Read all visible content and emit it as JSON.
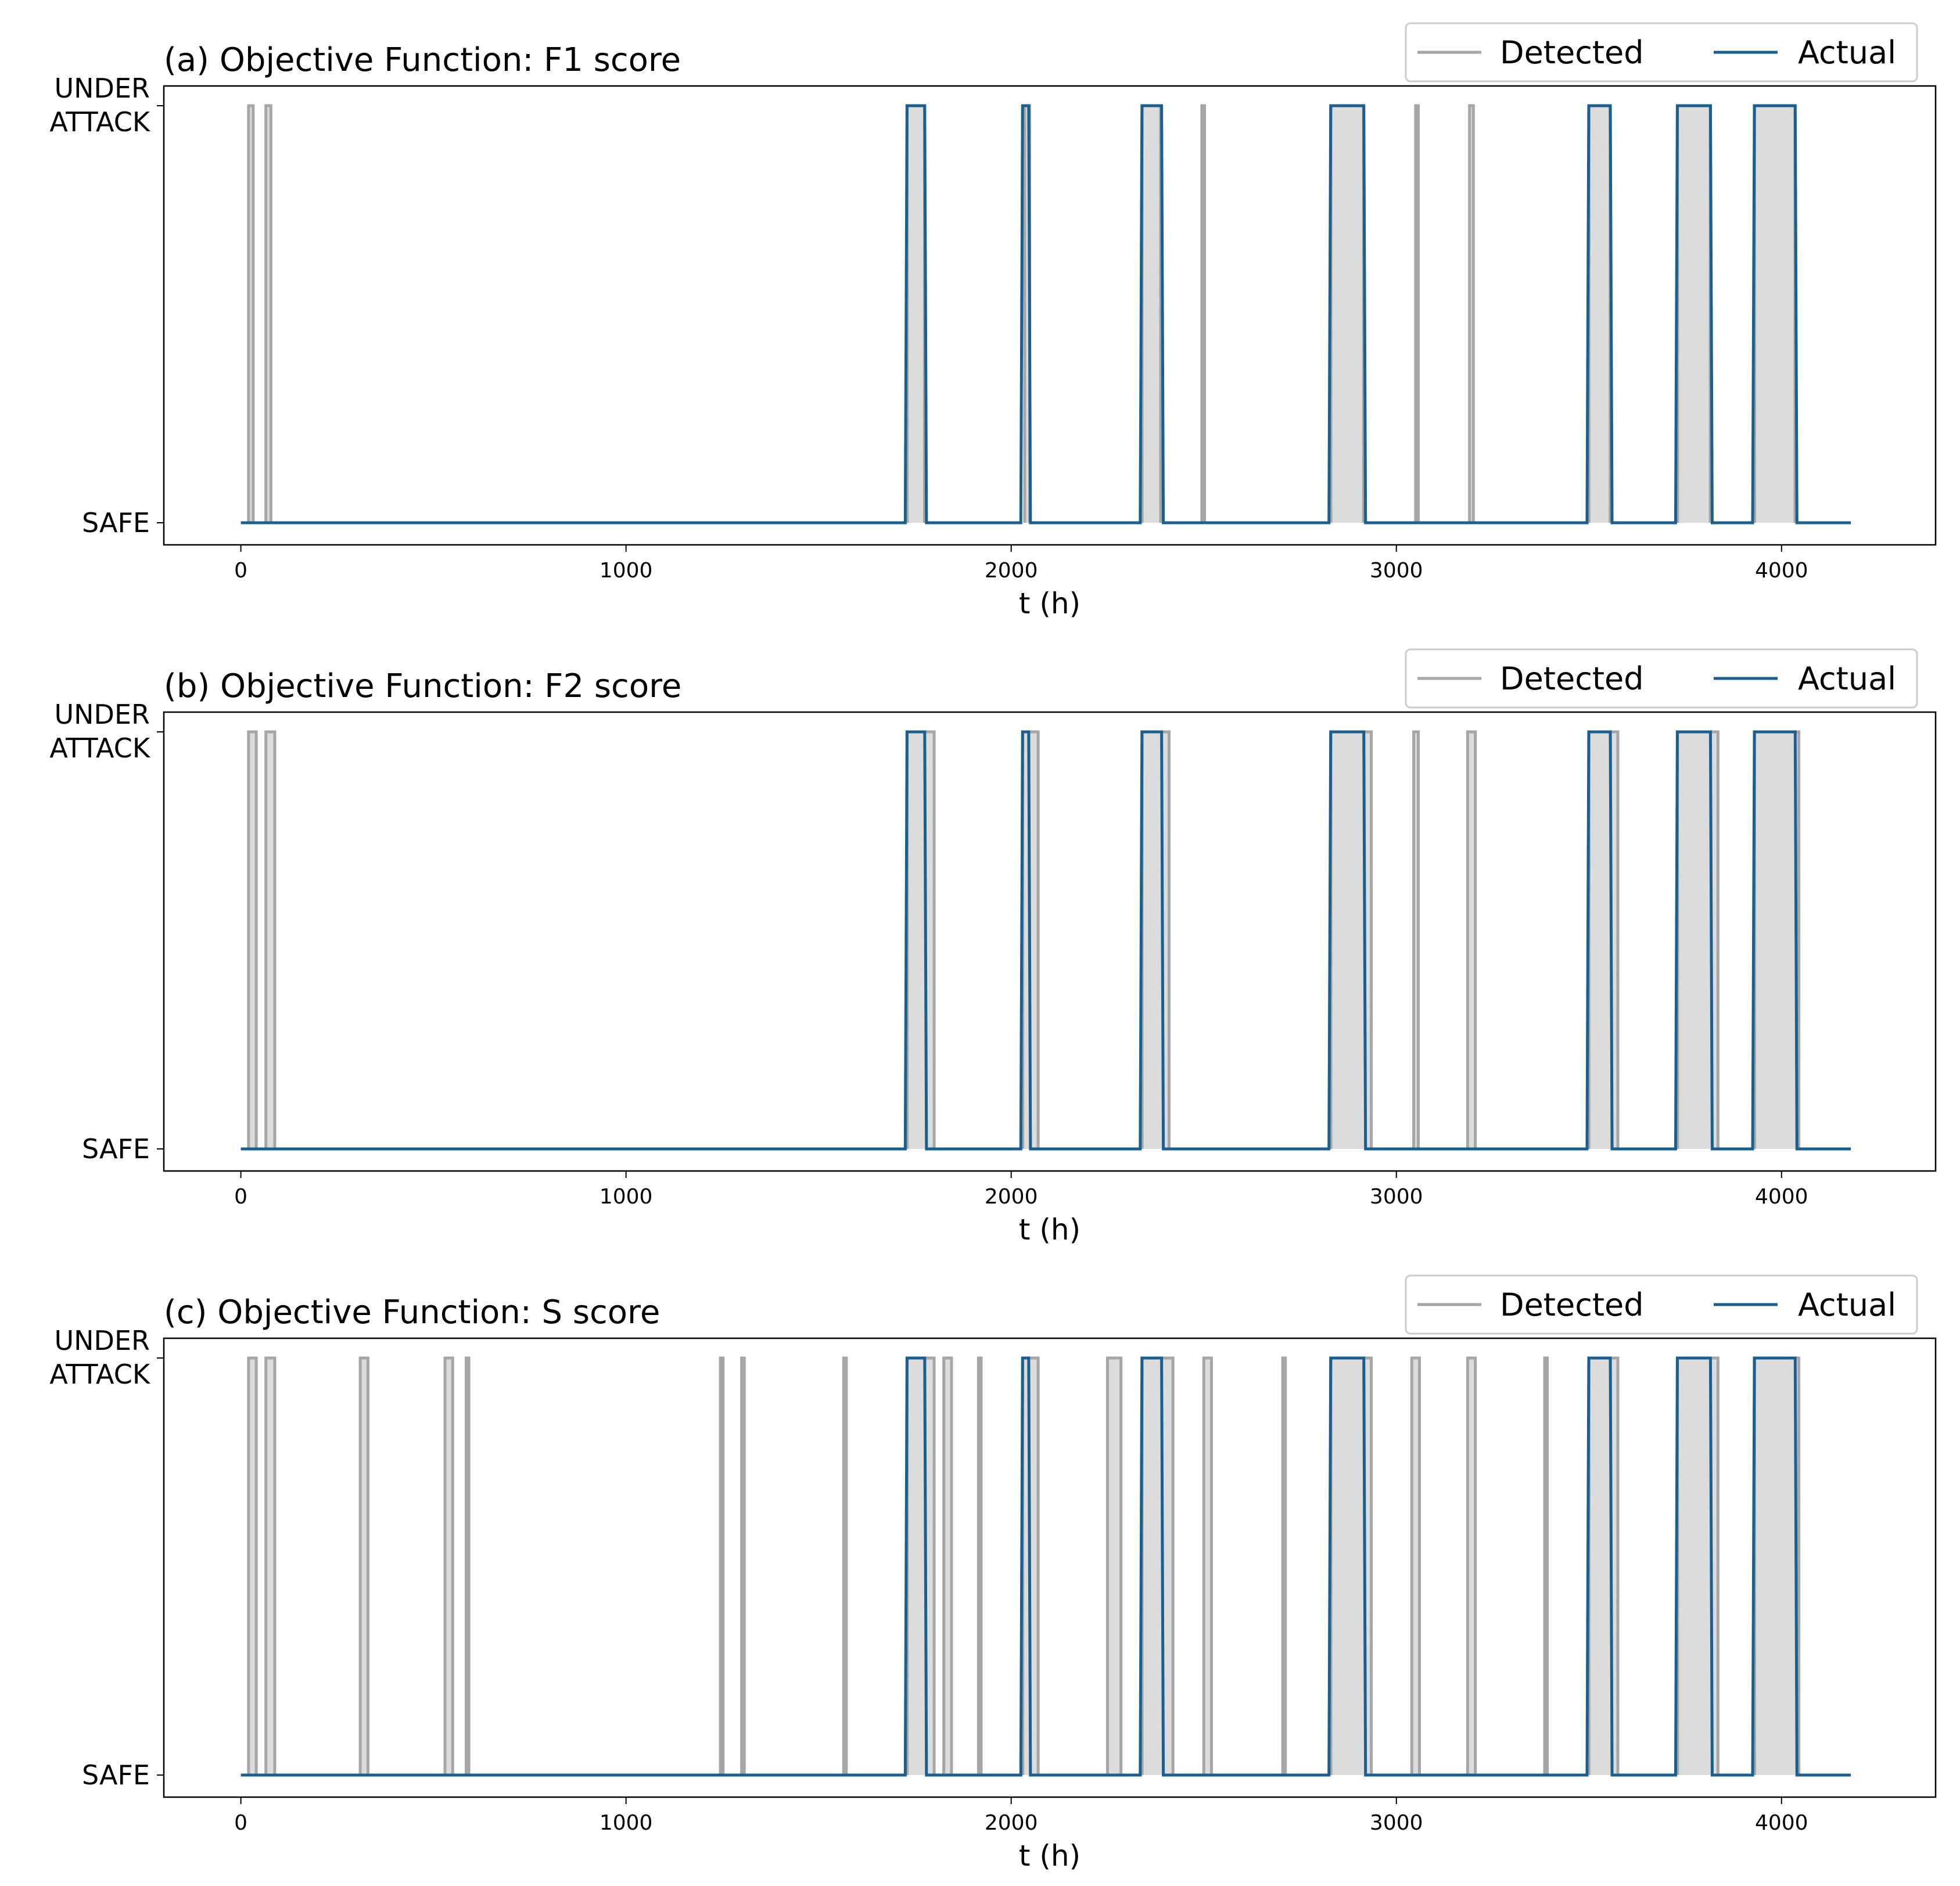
{
  "colors": {
    "detected_line": "#a6a6a6",
    "detected_fill": "#dcdcdc",
    "actual_line": "#1a5f8f",
    "frame": "#000000",
    "legend_border": "#cccccc"
  },
  "legend": {
    "detected": "Detected",
    "actual": "Actual"
  },
  "chart_data": [
    {
      "type": "line",
      "title": "(a) Objective Function: F1 score",
      "xlabel": "t (h)",
      "ylabel": "",
      "xlim": [
        -200,
        4400
      ],
      "xticks": [
        0,
        1000,
        2000,
        3000,
        4000
      ],
      "yticks": [
        "SAFE",
        "UNDER ATTACK"
      ],
      "ylim": [
        0,
        1
      ],
      "legend_position": "top-right",
      "x_end": 4180,
      "series": [
        {
          "name": "Actual",
          "intervals": [
            [
              1725,
              1780
            ],
            [
              2025,
              2050
            ],
            [
              2335,
              2395
            ],
            [
              2825,
              2920
            ],
            [
              3495,
              3560
            ],
            [
              3725,
              3820
            ],
            [
              3925,
              4040
            ]
          ]
        },
        {
          "name": "Detected",
          "intervals": [
            [
              20,
              32
            ],
            [
              65,
              78
            ],
            [
              1730,
              1775
            ],
            [
              2035,
              2048
            ],
            [
              2340,
              2388
            ],
            [
              2495,
              2502
            ],
            [
              2830,
              2915
            ],
            [
              3050,
              3057
            ],
            [
              3190,
              3200
            ],
            [
              3500,
              3555
            ],
            [
              3730,
              3815
            ],
            [
              3930,
              4035
            ]
          ]
        }
      ]
    },
    {
      "type": "line",
      "title": "(b) Objective Function: F2 score",
      "xlabel": "t (h)",
      "ylabel": "",
      "xlim": [
        -200,
        4400
      ],
      "xticks": [
        0,
        1000,
        2000,
        3000,
        4000
      ],
      "yticks": [
        "SAFE",
        "UNDER ATTACK"
      ],
      "ylim": [
        0,
        1
      ],
      "legend_position": "top-right",
      "x_end": 4180,
      "series": [
        {
          "name": "Actual",
          "intervals": [
            [
              1725,
              1780
            ],
            [
              2025,
              2050
            ],
            [
              2335,
              2395
            ],
            [
              2825,
              2920
            ],
            [
              3495,
              3560
            ],
            [
              3725,
              3820
            ],
            [
              3925,
              4040
            ]
          ]
        },
        {
          "name": "Detected",
          "intervals": [
            [
              20,
              40
            ],
            [
              65,
              88
            ],
            [
              1730,
              1800
            ],
            [
              2030,
              2070
            ],
            [
              2340,
              2410
            ],
            [
              2830,
              2935
            ],
            [
              3045,
              3057
            ],
            [
              3185,
              3205
            ],
            [
              3500,
              3575
            ],
            [
              3730,
              3835
            ],
            [
              3930,
              4045
            ]
          ]
        }
      ]
    },
    {
      "type": "line",
      "title": "(c) Objective Function: S score",
      "xlabel": "t (h)",
      "ylabel": "",
      "xlim": [
        -200,
        4400
      ],
      "xticks": [
        0,
        1000,
        2000,
        3000,
        4000
      ],
      "yticks": [
        "SAFE",
        "UNDER ATTACK"
      ],
      "ylim": [
        0,
        1
      ],
      "legend_position": "top-right",
      "x_end": 4180,
      "series": [
        {
          "name": "Actual",
          "intervals": [
            [
              1725,
              1780
            ],
            [
              2025,
              2050
            ],
            [
              2335,
              2395
            ],
            [
              2825,
              2920
            ],
            [
              3495,
              3560
            ],
            [
              3725,
              3820
            ],
            [
              3925,
              4040
            ]
          ]
        },
        {
          "name": "Detected",
          "intervals": [
            [
              20,
              40
            ],
            [
              65,
              88
            ],
            [
              310,
              330
            ],
            [
              530,
              550
            ],
            [
              585,
              592
            ],
            [
              1245,
              1252
            ],
            [
              1300,
              1307
            ],
            [
              1565,
              1572
            ],
            [
              1730,
              1800
            ],
            [
              1825,
              1845
            ],
            [
              1915,
              1922
            ],
            [
              2030,
              2070
            ],
            [
              2250,
              2285
            ],
            [
              2340,
              2420
            ],
            [
              2500,
              2520
            ],
            [
              2705,
              2712
            ],
            [
              2830,
              2935
            ],
            [
              3040,
              3060
            ],
            [
              3185,
              3205
            ],
            [
              3385,
              3392
            ],
            [
              3500,
              3575
            ],
            [
              3730,
              3835
            ],
            [
              3930,
              4045
            ]
          ]
        }
      ]
    }
  ]
}
